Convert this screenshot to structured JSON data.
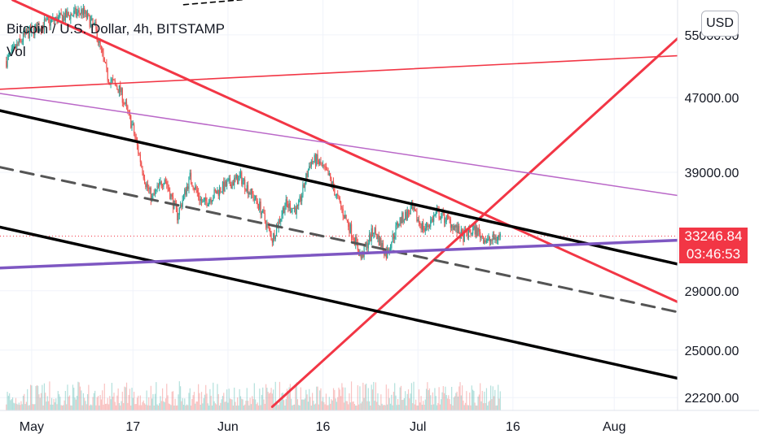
{
  "header": {
    "symbol_title": "Bitcoin / U.S. Dollar, 4h, BITSTAMP",
    "volume_label": "Vol",
    "currency_button": "USD"
  },
  "price_badge": {
    "last_price": "33246.84",
    "countdown": "03:46:53",
    "color": "#f23645"
  },
  "colors": {
    "up": "#26a69a",
    "down": "#ef5350",
    "trend_red": "#f23645",
    "channel_black": "#000000",
    "midline_dashed": "#555555",
    "purple_line": "#7e57c2",
    "lilac_line": "#ba68c8"
  },
  "chart_data": {
    "type": "candlestick",
    "title": "Bitcoin / U.S. Dollar, 4h, BITSTAMP",
    "interval": "4h",
    "currency": "USD",
    "y_ticks": [
      "55000.00",
      "47000.00",
      "39000.00",
      "33246.84",
      "29000.00",
      "25000.00",
      "22200.00"
    ],
    "x_ticks": [
      "May",
      "17",
      "Jun",
      "16",
      "Jul",
      "16",
      "Aug"
    ],
    "y_scale": "log",
    "ylim": [
      21500,
      60000
    ],
    "xlim": [
      "2021-04-26",
      "2021-08-11"
    ],
    "last_price": 33246.84,
    "price_path": [
      [
        "2021-04-27",
        51500
      ],
      [
        "2021-04-30",
        55000
      ],
      [
        "2021-05-03",
        56500
      ],
      [
        "2021-05-06",
        57500
      ],
      [
        "2021-05-09",
        58300
      ],
      [
        "2021-05-11",
        56000
      ],
      [
        "2021-05-13",
        49500
      ],
      [
        "2021-05-15",
        47800
      ],
      [
        "2021-05-17",
        43500
      ],
      [
        "2021-05-19",
        38000
      ],
      [
        "2021-05-20",
        36500
      ],
      [
        "2021-05-22",
        38500
      ],
      [
        "2021-05-24",
        35000
      ],
      [
        "2021-05-26",
        38500
      ],
      [
        "2021-05-28",
        36000
      ],
      [
        "2021-05-31",
        37500
      ],
      [
        "2021-06-03",
        38500
      ],
      [
        "2021-06-06",
        35800
      ],
      [
        "2021-06-08",
        33000
      ],
      [
        "2021-06-10",
        36000
      ],
      [
        "2021-06-12",
        35500
      ],
      [
        "2021-06-14",
        40000
      ],
      [
        "2021-06-15",
        40200
      ],
      [
        "2021-06-17",
        38500
      ],
      [
        "2021-06-19",
        35500
      ],
      [
        "2021-06-21",
        33000
      ],
      [
        "2021-06-22",
        31500
      ],
      [
        "2021-06-24",
        33800
      ],
      [
        "2021-06-26",
        31800
      ],
      [
        "2021-06-28",
        34500
      ],
      [
        "2021-06-30",
        35500
      ],
      [
        "2021-07-02",
        33800
      ],
      [
        "2021-07-04",
        35200
      ],
      [
        "2021-07-06",
        34500
      ],
      [
        "2021-07-08",
        33200
      ],
      [
        "2021-07-10",
        33800
      ],
      [
        "2021-07-12",
        32800
      ],
      [
        "2021-07-14",
        33246.84
      ]
    ],
    "trend_lines": [
      {
        "name": "red-resistance",
        "color": "#f23645",
        "style": "solid",
        "points": [
          [
            "2021-04-28",
            60000
          ],
          [
            "2021-08-11",
            28200
          ]
        ]
      },
      {
        "name": "red-support",
        "color": "#f23645",
        "style": "solid",
        "points": [
          [
            "2021-06-08",
            21700
          ],
          [
            "2021-08-11",
            54500
          ]
        ]
      },
      {
        "name": "red-upper-flat",
        "color": "#f23645",
        "style": "solid",
        "points": [
          [
            "2021-04-26",
            48000
          ],
          [
            "2021-08-11",
            52200
          ]
        ]
      },
      {
        "name": "channel-top",
        "color": "#000000",
        "style": "solid",
        "points": [
          [
            "2021-04-26",
            45500
          ],
          [
            "2021-08-11",
            31000
          ]
        ]
      },
      {
        "name": "channel-bottom",
        "color": "#000000",
        "style": "solid",
        "points": [
          [
            "2021-04-26",
            34000
          ],
          [
            "2021-08-11",
            23300
          ]
        ]
      },
      {
        "name": "channel-mid",
        "color": "#555555",
        "style": "dashed",
        "points": [
          [
            "2021-04-26",
            39500
          ],
          [
            "2021-08-11",
            27500
          ]
        ]
      },
      {
        "name": "top-dashed",
        "color": "#000000",
        "style": "dashed",
        "points": [
          [
            "2021-05-25",
            59300
          ],
          [
            "2021-06-21",
            61500
          ]
        ]
      },
      {
        "name": "purple-support",
        "color": "#7e57c2",
        "style": "solid",
        "points": [
          [
            "2021-04-26",
            30700
          ],
          [
            "2021-08-11",
            32900
          ]
        ]
      },
      {
        "name": "lilac-resistance",
        "color": "#ba68c8",
        "style": "solid",
        "points": [
          [
            "2021-04-26",
            47500
          ],
          [
            "2021-08-11",
            36800
          ]
        ]
      }
    ],
    "grid": true,
    "legend": "top-left"
  }
}
